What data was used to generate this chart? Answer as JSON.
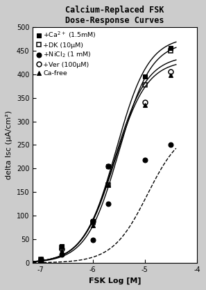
{
  "title": "Calcium-Replaced FSK\nDose-Response Curves",
  "xlabel": "FSK Log [M]",
  "ylabel": "delta Isc (μA/cm²)",
  "xlim": [
    -7.15,
    -4.0
  ],
  "ylim": [
    0,
    500
  ],
  "xticks": [
    -7,
    -6,
    -5,
    -4
  ],
  "yticks": [
    0,
    50,
    100,
    150,
    200,
    250,
    300,
    350,
    400,
    450,
    500
  ],
  "series": [
    {
      "label": "+Ca$^{2+}$ (1.5mM)",
      "marker": "s",
      "fillstyle": "full",
      "linestyle": "-",
      "x_data": [
        -7.0,
        -6.6,
        -6.0,
        -5.7,
        -5.0,
        -4.5
      ],
      "y_data": [
        7,
        35,
        88,
        205,
        395,
        455
      ],
      "Emax": 480,
      "EC50_log": -5.55,
      "Hill": 1.4
    },
    {
      "label": "+DK (10μM)",
      "marker": "s",
      "fillstyle": "none",
      "linestyle": "-",
      "x_data": [
        -7.0,
        -6.6,
        -6.0,
        -5.7,
        -5.0,
        -4.5
      ],
      "y_data": [
        7,
        33,
        85,
        165,
        378,
        450
      ],
      "Emax": 470,
      "EC50_log": -5.5,
      "Hill": 1.4
    },
    {
      "label": "+NiCl$_2$ (1 mM)",
      "marker": "o",
      "fillstyle": "full",
      "linestyle": "--",
      "x_data": [
        -7.0,
        -6.6,
        -6.0,
        -5.7,
        -5.0,
        -4.5
      ],
      "y_data": [
        5,
        18,
        48,
        125,
        218,
        250
      ],
      "Emax": 290,
      "EC50_log": -4.95,
      "Hill": 1.3
    },
    {
      "label": "+Ver (100μM)",
      "marker": "o",
      "fillstyle": "none",
      "linestyle": "-",
      "x_data": [
        -7.0,
        -6.6,
        -6.0,
        -5.7,
        -5.0,
        -4.5
      ],
      "y_data": [
        7,
        30,
        88,
        205,
        340,
        405
      ],
      "Emax": 440,
      "EC50_log": -5.58,
      "Hill": 1.4
    },
    {
      "label": "Ca-free",
      "marker": "^",
      "fillstyle": "full",
      "linestyle": "-",
      "x_data": [
        -7.0,
        -6.6,
        -6.0,
        -5.7,
        -5.0,
        -4.5
      ],
      "y_data": [
        5,
        25,
        80,
        165,
        335,
        398
      ],
      "Emax": 430,
      "EC50_log": -5.58,
      "Hill": 1.4
    }
  ],
  "background_color": "#cccccc",
  "plot_bg_color": "#ffffff",
  "title_fontsize": 8.5,
  "axis_label_fontsize": 8,
  "tick_fontsize": 7,
  "legend_fontsize": 6.8,
  "marker_size": 5,
  "line_width": 1.0
}
